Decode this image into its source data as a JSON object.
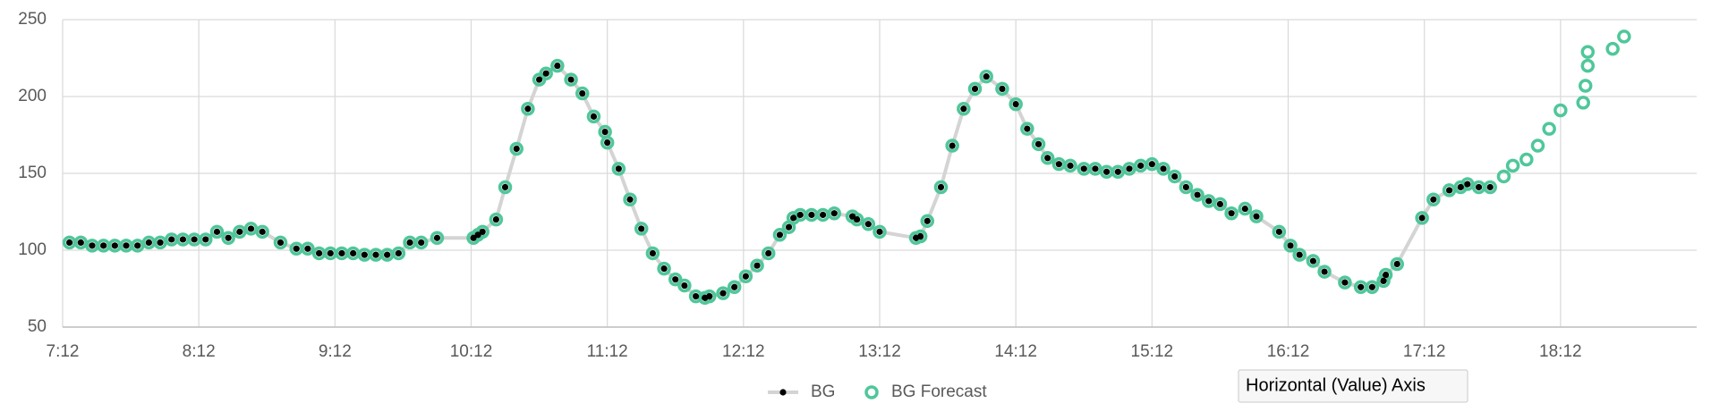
{
  "chart_data": {
    "type": "line",
    "ylim": [
      50,
      250
    ],
    "yticks": [
      50,
      100,
      150,
      200,
      250
    ],
    "xlim": [
      432,
      1152
    ],
    "xticks": [
      {
        "value": 432,
        "label": "7:12"
      },
      {
        "value": 492,
        "label": "8:12"
      },
      {
        "value": 552,
        "label": "9:12"
      },
      {
        "value": 612,
        "label": "10:12"
      },
      {
        "value": 672,
        "label": "11:12"
      },
      {
        "value": 732,
        "label": "12:12"
      },
      {
        "value": 792,
        "label": "13:12"
      },
      {
        "value": 852,
        "label": "14:12"
      },
      {
        "value": 912,
        "label": "15:12"
      },
      {
        "value": 972,
        "label": "16:12"
      },
      {
        "value": 1032,
        "label": "17:12"
      },
      {
        "value": 1092,
        "label": "18:12"
      }
    ],
    "grid": true,
    "tooltip": "Horizontal (Value) Axis",
    "series": [
      {
        "name": "BG",
        "color": "#d4d4d4",
        "marker_color": "#000000",
        "x": [
          435,
          440,
          445,
          450,
          455,
          460,
          465,
          470,
          475,
          480,
          485,
          490,
          495,
          500,
          505,
          510,
          515,
          520,
          528,
          535,
          540,
          545,
          550,
          555,
          560,
          565,
          570,
          575,
          580,
          585,
          590,
          597,
          613,
          615,
          617,
          623,
          627,
          632,
          637,
          642,
          645,
          650,
          656,
          661,
          666,
          671,
          672,
          677,
          682,
          687,
          692,
          697,
          702,
          706,
          711,
          715,
          717,
          723,
          728,
          733,
          738,
          743,
          748,
          752,
          754,
          757,
          762,
          767,
          772,
          780,
          782,
          787,
          792,
          808,
          810,
          813,
          819,
          824,
          829,
          834,
          839,
          846,
          852,
          857,
          862,
          866,
          871,
          876,
          882,
          887,
          892,
          897,
          902,
          907,
          912,
          917,
          922,
          927,
          932,
          937,
          942,
          947,
          953,
          958,
          968,
          973,
          977,
          983,
          988,
          997,
          1004,
          1009,
          1014,
          1015,
          1020,
          1031,
          1036,
          1043,
          1048,
          1051,
          1056,
          1061
        ],
        "values": [
          105,
          105,
          103,
          103,
          103,
          103,
          103,
          105,
          105,
          107,
          107,
          107,
          107,
          112,
          108,
          112,
          114,
          112,
          105,
          101,
          101,
          98,
          98,
          98,
          98,
          97,
          97,
          97,
          98,
          105,
          105,
          108,
          108,
          110,
          112,
          120,
          141,
          166,
          192,
          211,
          215,
          220,
          211,
          202,
          187,
          177,
          170,
          153,
          133,
          114,
          98,
          88,
          81,
          77,
          70,
          69,
          70,
          72,
          76,
          83,
          90,
          98,
          110,
          115,
          121,
          123,
          123,
          123,
          124,
          122,
          120,
          117,
          112,
          108,
          109,
          119,
          141,
          168,
          192,
          205,
          213,
          205,
          195,
          179,
          169,
          160,
          156,
          155,
          153,
          153,
          151,
          151,
          153,
          155,
          156,
          153,
          148,
          141,
          136,
          132,
          130,
          124,
          127,
          122,
          112,
          103,
          97,
          93,
          86,
          79,
          76,
          76,
          80,
          84,
          91,
          121,
          133,
          139,
          141,
          143,
          141,
          141
        ]
      },
      {
        "name": "BG Forecast",
        "color": "#4fc79a",
        "x": [
          435,
          440,
          445,
          450,
          455,
          460,
          465,
          470,
          475,
          480,
          485,
          490,
          495,
          500,
          505,
          510,
          515,
          520,
          528,
          535,
          540,
          545,
          550,
          555,
          560,
          565,
          570,
          575,
          580,
          585,
          590,
          597,
          613,
          615,
          617,
          623,
          627,
          632,
          637,
          642,
          645,
          650,
          656,
          661,
          666,
          671,
          672,
          677,
          682,
          687,
          692,
          697,
          702,
          706,
          711,
          715,
          717,
          723,
          728,
          733,
          738,
          743,
          748,
          752,
          754,
          757,
          762,
          767,
          772,
          780,
          782,
          787,
          792,
          808,
          810,
          813,
          819,
          824,
          829,
          834,
          839,
          846,
          852,
          857,
          862,
          866,
          871,
          876,
          882,
          887,
          892,
          897,
          902,
          907,
          912,
          917,
          922,
          927,
          932,
          937,
          942,
          947,
          953,
          958,
          968,
          973,
          977,
          983,
          988,
          997,
          1004,
          1009,
          1014,
          1015,
          1020,
          1031,
          1036,
          1043,
          1048,
          1051,
          1056,
          1061,
          1067,
          1071,
          1077,
          1082,
          1087,
          1092,
          1102,
          1103,
          1104,
          1104,
          1115,
          1120
        ],
        "values": [
          105,
          105,
          103,
          103,
          103,
          103,
          103,
          105,
          105,
          107,
          107,
          107,
          107,
          112,
          108,
          112,
          114,
          112,
          105,
          101,
          101,
          98,
          98,
          98,
          98,
          97,
          97,
          97,
          98,
          105,
          105,
          108,
          108,
          110,
          112,
          120,
          141,
          166,
          192,
          211,
          215,
          220,
          211,
          202,
          187,
          177,
          170,
          153,
          133,
          114,
          98,
          88,
          81,
          77,
          70,
          69,
          70,
          72,
          76,
          83,
          90,
          98,
          110,
          115,
          121,
          123,
          123,
          123,
          124,
          122,
          120,
          117,
          112,
          108,
          109,
          119,
          141,
          168,
          192,
          205,
          213,
          205,
          195,
          179,
          169,
          160,
          156,
          155,
          153,
          153,
          151,
          151,
          153,
          155,
          156,
          153,
          148,
          141,
          136,
          132,
          130,
          124,
          127,
          122,
          112,
          103,
          97,
          93,
          86,
          79,
          76,
          76,
          80,
          84,
          91,
          121,
          133,
          139,
          141,
          143,
          141,
          141,
          148,
          155,
          159,
          168,
          179,
          191,
          196,
          207,
          220,
          229,
          231,
          239
        ]
      }
    ]
  }
}
